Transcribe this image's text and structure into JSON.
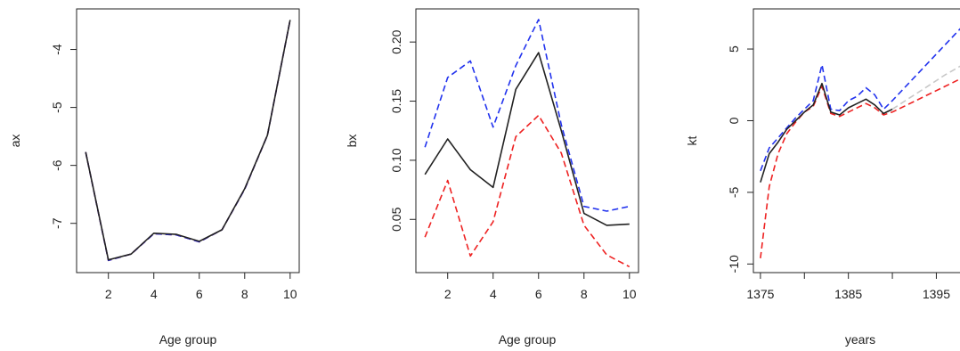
{
  "chart_data": [
    {
      "type": "line",
      "xlabel": "Age group",
      "ylabel": "ax",
      "xlim": [
        0.6,
        10.4
      ],
      "ylim": [
        -7.85,
        -3.3
      ],
      "xticks": [
        2,
        4,
        6,
        8,
        10
      ],
      "yticks": [
        -7,
        -6,
        -5,
        -4
      ],
      "x": [
        1,
        2,
        3,
        4,
        5,
        6,
        7,
        8,
        9,
        10
      ],
      "series": [
        {
          "color": "#222222",
          "style": "solid",
          "values": [
            -5.77,
            -7.63,
            -7.53,
            -7.17,
            -7.19,
            -7.31,
            -7.11,
            -6.4,
            -5.48,
            -3.49
          ]
        },
        {
          "color": "#2233ee",
          "style": "dashed",
          "values": [
            -5.77,
            -7.64,
            -7.53,
            -7.18,
            -7.2,
            -7.32,
            -7.11,
            -6.41,
            -5.48,
            -3.49
          ]
        },
        {
          "color": "#ee2222",
          "style": "dashed",
          "values": [
            -5.77,
            -7.64,
            -7.53,
            -7.18,
            -7.2,
            -7.32,
            -7.11,
            -6.41,
            -5.48,
            -3.49
          ]
        }
      ]
    },
    {
      "type": "line",
      "xlabel": "Age group",
      "ylabel": "bx",
      "xlim": [
        0.6,
        10.4
      ],
      "ylim": [
        0.005,
        0.228
      ],
      "xticks": [
        2,
        4,
        6,
        8,
        10
      ],
      "yticks": [
        0.05,
        0.1,
        0.15,
        0.2
      ],
      "x": [
        1,
        2,
        3,
        4,
        5,
        6,
        7,
        8,
        9,
        10
      ],
      "series": [
        {
          "color": "#222222",
          "style": "solid",
          "values": [
            0.088,
            0.118,
            0.092,
            0.077,
            0.16,
            0.191,
            0.125,
            0.055,
            0.045,
            0.046
          ]
        },
        {
          "color": "#2233ee",
          "style": "dashed",
          "values": [
            0.111,
            0.17,
            0.184,
            0.128,
            0.18,
            0.219,
            0.13,
            0.061,
            0.057,
            0.061
          ]
        },
        {
          "color": "#ee2222",
          "style": "dashed",
          "values": [
            0.035,
            0.083,
            0.019,
            0.048,
            0.12,
            0.138,
            0.106,
            0.045,
            0.02,
            0.01
          ]
        }
      ]
    },
    {
      "type": "line",
      "xlabel": "years",
      "ylabel": "kt",
      "xlim": [
        1374.2,
        1398.5
      ],
      "ylim": [
        -10.6,
        7.8
      ],
      "xticks": [
        1375,
        1385,
        1395
      ],
      "minor_xticks": [
        1380,
        1390
      ],
      "yticks": [
        -10,
        -5,
        0,
        5
      ],
      "series": [
        {
          "color": "#222222",
          "style": "solid",
          "x": [
            1375,
            1376,
            1377,
            1378,
            1379,
            1380,
            1381,
            1382,
            1383,
            1384,
            1385,
            1386,
            1387,
            1388,
            1389,
            1390
          ],
          "values": [
            -4.3,
            -2.3,
            -1.5,
            -0.6,
            0.0,
            0.6,
            1.1,
            2.6,
            0.6,
            0.4,
            0.9,
            1.2,
            1.5,
            1.1,
            0.5,
            0.8
          ]
        },
        {
          "color": "#2233ee",
          "style": "dashed",
          "x": [
            1375,
            1376,
            1377,
            1378,
            1379,
            1380,
            1381,
            1382,
            1383,
            1384,
            1385,
            1386,
            1387,
            1388,
            1389,
            1390,
            1392,
            1394,
            1396,
            1398
          ],
          "values": [
            -3.5,
            -1.9,
            -1.2,
            -0.5,
            0.2,
            0.8,
            1.4,
            3.9,
            0.8,
            0.7,
            1.4,
            1.7,
            2.3,
            1.8,
            0.8,
            1.4,
            2.7,
            4.0,
            5.3,
            6.6
          ]
        },
        {
          "color": "#ee2222",
          "style": "dashed",
          "x": [
            1375,
            1376,
            1377,
            1378,
            1379,
            1380,
            1381,
            1382,
            1383,
            1384,
            1385,
            1386,
            1387,
            1388,
            1389,
            1390,
            1392,
            1394,
            1396,
            1398
          ],
          "values": [
            -9.6,
            -4.6,
            -2.3,
            -0.9,
            -0.1,
            0.6,
            1.0,
            2.4,
            0.5,
            0.3,
            0.6,
            0.9,
            1.2,
            0.9,
            0.4,
            0.6,
            1.2,
            1.8,
            2.4,
            3.0
          ]
        },
        {
          "color": "#c8c8c8",
          "style": "dashed",
          "x": [
            1390,
            1392,
            1394,
            1396,
            1398
          ],
          "values": [
            0.8,
            1.6,
            2.4,
            3.2,
            3.9
          ]
        }
      ]
    }
  ]
}
